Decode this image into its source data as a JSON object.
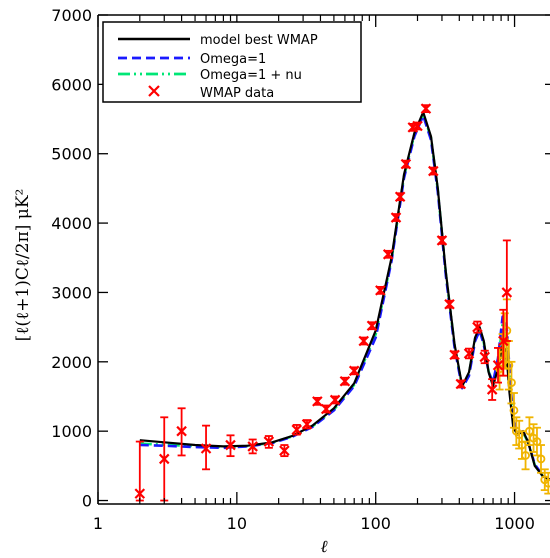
{
  "chart_data": {
    "type": "line",
    "xscale": "log",
    "xlim": [
      1,
      1800
    ],
    "ylim": [
      -50,
      7000
    ],
    "xlabel": "ℓ",
    "ylabel": "[ℓ(ℓ+1)Cℓ/2π] μK²",
    "x_ticks": [
      1,
      10,
      100,
      1000
    ],
    "x_tick_labels": [
      "1",
      "10",
      "100",
      "1000"
    ],
    "y_ticks": [
      0,
      1000,
      2000,
      3000,
      4000,
      5000,
      6000,
      7000
    ],
    "y_tick_labels": [
      "0",
      "1000",
      "2000",
      "3000",
      "4000",
      "5000",
      "6000",
      "7000"
    ],
    "legend_position": "top-left",
    "series": [
      {
        "name": "model best WMAP",
        "style": "solid",
        "color": "#000000",
        "points": [
          [
            2,
            870
          ],
          [
            3,
            840
          ],
          [
            5,
            800
          ],
          [
            8,
            780
          ],
          [
            12,
            790
          ],
          [
            18,
            840
          ],
          [
            25,
            930
          ],
          [
            35,
            1080
          ],
          [
            50,
            1330
          ],
          [
            70,
            1690
          ],
          [
            100,
            2450
          ],
          [
            130,
            3500
          ],
          [
            160,
            4700
          ],
          [
            190,
            5300
          ],
          [
            220,
            5600
          ],
          [
            250,
            5250
          ],
          [
            280,
            4500
          ],
          [
            320,
            3300
          ],
          [
            370,
            2250
          ],
          [
            420,
            1650
          ],
          [
            470,
            1850
          ],
          [
            520,
            2350
          ],
          [
            560,
            2500
          ],
          [
            600,
            2300
          ],
          [
            650,
            1850
          ],
          [
            700,
            1650
          ],
          [
            760,
            1900
          ],
          [
            820,
            2250
          ],
          [
            870,
            2150
          ],
          [
            920,
            1550
          ],
          [
            980,
            1050
          ],
          [
            1050,
            950
          ],
          [
            1150,
            1000
          ],
          [
            1250,
            850
          ],
          [
            1400,
            500
          ],
          [
            1600,
            350
          ],
          [
            1800,
            300
          ]
        ]
      },
      {
        "name": "Omega=1",
        "style": "dashed",
        "color": "#1a1aff",
        "points": [
          [
            2,
            800
          ],
          [
            3,
            790
          ],
          [
            5,
            770
          ],
          [
            8,
            760
          ],
          [
            12,
            780
          ],
          [
            18,
            830
          ],
          [
            25,
            920
          ],
          [
            35,
            1060
          ],
          [
            50,
            1300
          ],
          [
            70,
            1650
          ],
          [
            100,
            2350
          ],
          [
            130,
            3450
          ],
          [
            160,
            4650
          ],
          [
            190,
            5250
          ],
          [
            220,
            5550
          ],
          [
            250,
            5200
          ],
          [
            280,
            4450
          ],
          [
            320,
            3250
          ],
          [
            370,
            2200
          ],
          [
            420,
            1620
          ],
          [
            470,
            1800
          ],
          [
            520,
            2300
          ],
          [
            560,
            2450
          ],
          [
            600,
            2250
          ],
          [
            650,
            1850
          ],
          [
            700,
            1700
          ],
          [
            760,
            2050
          ],
          [
            820,
            2650
          ],
          [
            870,
            2600
          ],
          [
            920,
            1900
          ],
          [
            980,
            1150
          ],
          [
            1050,
            980
          ],
          [
            1150,
            1000
          ],
          [
            1250,
            850
          ],
          [
            1400,
            520
          ],
          [
            1600,
            360
          ],
          [
            1800,
            300
          ]
        ]
      },
      {
        "name": "Omega=1 + nu",
        "style": "dash-dot",
        "color": "#00e676",
        "points": [
          [
            2,
            820
          ],
          [
            3,
            805
          ],
          [
            5,
            785
          ],
          [
            8,
            770
          ],
          [
            12,
            785
          ],
          [
            18,
            835
          ],
          [
            25,
            925
          ],
          [
            35,
            1070
          ],
          [
            50,
            1310
          ],
          [
            70,
            1670
          ],
          [
            100,
            2400
          ],
          [
            130,
            3470
          ],
          [
            160,
            4670
          ],
          [
            190,
            5280
          ],
          [
            220,
            5580
          ],
          [
            250,
            5230
          ],
          [
            280,
            4480
          ],
          [
            320,
            3280
          ],
          [
            370,
            2230
          ],
          [
            420,
            1640
          ],
          [
            470,
            1830
          ],
          [
            520,
            2330
          ],
          [
            560,
            2480
          ],
          [
            600,
            2280
          ],
          [
            650,
            1860
          ],
          [
            700,
            1700
          ],
          [
            760,
            2000
          ],
          [
            820,
            2550
          ],
          [
            870,
            2500
          ],
          [
            920,
            1800
          ],
          [
            980,
            1100
          ],
          [
            1050,
            960
          ],
          [
            1150,
            990
          ],
          [
            1250,
            840
          ],
          [
            1400,
            510
          ],
          [
            1600,
            350
          ],
          [
            1800,
            300
          ]
        ]
      }
    ],
    "points_series": [
      {
        "name": "WMAP data",
        "color": "#ff0000",
        "points": [
          {
            "x": 2,
            "y": 100,
            "lo": 0,
            "hi": 850
          },
          {
            "x": 3,
            "y": 600,
            "lo": 0,
            "hi": 1200
          },
          {
            "x": 4,
            "y": 1000,
            "lo": 650,
            "hi": 1330
          },
          {
            "x": 6,
            "y": 750,
            "lo": 450,
            "hi": 1080
          },
          {
            "x": 9,
            "y": 800,
            "lo": 640,
            "hi": 940
          },
          {
            "x": 13,
            "y": 780,
            "lo": 680,
            "hi": 880
          },
          {
            "x": 17,
            "y": 850,
            "lo": 760,
            "hi": 930
          },
          {
            "x": 22,
            "y": 720,
            "lo": 640,
            "hi": 800
          },
          {
            "x": 27,
            "y": 1020,
            "lo": 950,
            "hi": 1090
          },
          {
            "x": 32,
            "y": 1100,
            "lo": 1040,
            "hi": 1160
          },
          {
            "x": 38,
            "y": 1430,
            "lo": 1380,
            "hi": 1480
          },
          {
            "x": 44,
            "y": 1320,
            "lo": 1270,
            "hi": 1370
          },
          {
            "x": 51,
            "y": 1450,
            "lo": 1400,
            "hi": 1500
          },
          {
            "x": 60,
            "y": 1720,
            "lo": 1670,
            "hi": 1770
          },
          {
            "x": 70,
            "y": 1870,
            "lo": 1820,
            "hi": 1920
          },
          {
            "x": 82,
            "y": 2300,
            "lo": 2250,
            "hi": 2350
          },
          {
            "x": 94,
            "y": 2520,
            "lo": 2470,
            "hi": 2570
          },
          {
            "x": 108,
            "y": 3030,
            "lo": 2980,
            "hi": 3080
          },
          {
            "x": 123,
            "y": 3550,
            "lo": 3500,
            "hi": 3600
          },
          {
            "x": 140,
            "y": 4080,
            "lo": 4030,
            "hi": 4130
          },
          {
            "x": 150,
            "y": 4380,
            "lo": 4330,
            "hi": 4430
          },
          {
            "x": 165,
            "y": 4850,
            "lo": 4800,
            "hi": 4900
          },
          {
            "x": 185,
            "y": 5380,
            "lo": 5330,
            "hi": 5430
          },
          {
            "x": 200,
            "y": 5400,
            "lo": 5350,
            "hi": 5450
          },
          {
            "x": 230,
            "y": 5650,
            "lo": 5600,
            "hi": 5700
          },
          {
            "x": 260,
            "y": 4750,
            "lo": 4700,
            "hi": 4800
          },
          {
            "x": 300,
            "y": 3750,
            "lo": 3700,
            "hi": 3800
          },
          {
            "x": 340,
            "y": 2830,
            "lo": 2780,
            "hi": 2880
          },
          {
            "x": 370,
            "y": 2100,
            "lo": 2050,
            "hi": 2150
          },
          {
            "x": 410,
            "y": 1680,
            "lo": 1630,
            "hi": 1730
          },
          {
            "x": 470,
            "y": 2120,
            "lo": 2050,
            "hi": 2190
          },
          {
            "x": 540,
            "y": 2500,
            "lo": 2420,
            "hi": 2580
          },
          {
            "x": 610,
            "y": 2070,
            "lo": 1980,
            "hi": 2160
          },
          {
            "x": 690,
            "y": 1600,
            "lo": 1450,
            "hi": 1750
          },
          {
            "x": 760,
            "y": 1950,
            "lo": 1700,
            "hi": 2200
          },
          {
            "x": 830,
            "y": 2300,
            "lo": 1800,
            "hi": 2750
          },
          {
            "x": 880,
            "y": 3000,
            "lo": 2300,
            "hi": 3750
          }
        ]
      },
      {
        "name": "",
        "color": "#f0b400",
        "points": [
          {
            "x": 780,
            "y": 1900,
            "lo": 1600,
            "hi": 2200
          },
          {
            "x": 820,
            "y": 2100,
            "lo": 1800,
            "hi": 2400
          },
          {
            "x": 850,
            "y": 2300,
            "lo": 1900,
            "hi": 2700
          },
          {
            "x": 880,
            "y": 2450,
            "lo": 2000,
            "hi": 2900
          },
          {
            "x": 910,
            "y": 1950,
            "lo": 1600,
            "hi": 2300
          },
          {
            "x": 950,
            "y": 1700,
            "lo": 1400,
            "hi": 2000
          },
          {
            "x": 990,
            "y": 1300,
            "lo": 1050,
            "hi": 1550
          },
          {
            "x": 1030,
            "y": 1000,
            "lo": 800,
            "hi": 1200
          },
          {
            "x": 1080,
            "y": 950,
            "lo": 750,
            "hi": 1150
          },
          {
            "x": 1130,
            "y": 800,
            "lo": 600,
            "hi": 1000
          },
          {
            "x": 1200,
            "y": 650,
            "lo": 450,
            "hi": 850
          },
          {
            "x": 1280,
            "y": 1000,
            "lo": 800,
            "hi": 1200
          },
          {
            "x": 1370,
            "y": 900,
            "lo": 700,
            "hi": 1100
          },
          {
            "x": 1450,
            "y": 850,
            "lo": 650,
            "hi": 1050
          },
          {
            "x": 1550,
            "y": 600,
            "lo": 400,
            "hi": 800
          },
          {
            "x": 1650,
            "y": 300,
            "lo": 150,
            "hi": 450
          },
          {
            "x": 1750,
            "y": 250,
            "lo": 100,
            "hi": 400
          }
        ]
      }
    ]
  }
}
